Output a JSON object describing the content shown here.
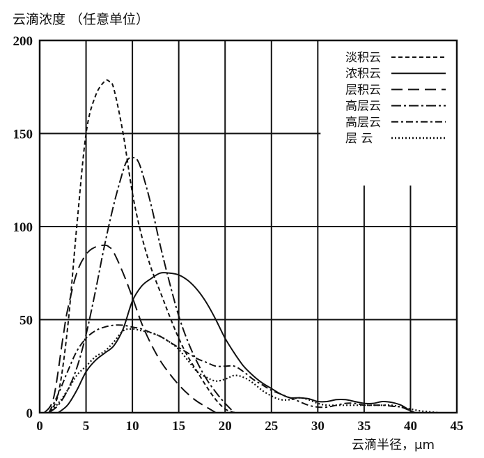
{
  "chart_data": {
    "type": "line",
    "title": "云滴浓度  （任意单位）",
    "xlabel": "云滴半径，μm",
    "ylabel": "",
    "xlim": [
      0,
      45
    ],
    "ylim": [
      0,
      200
    ],
    "xticks": [
      "0",
      "5",
      "10",
      "15",
      "20",
      "25",
      "30",
      "35",
      "40",
      "45"
    ],
    "yticks": [
      "0",
      "50",
      "100",
      "150",
      "200"
    ],
    "grid": true,
    "legend_position": "top-right",
    "series": [
      {
        "name": "淡积云",
        "style": "short-dash",
        "points": [
          [
            1,
            0
          ],
          [
            2,
            10
          ],
          [
            3,
            45
          ],
          [
            4,
            100
          ],
          [
            5,
            150
          ],
          [
            6,
            170
          ],
          [
            7,
            178
          ],
          [
            7.5,
            178
          ],
          [
            8,
            174
          ],
          [
            9,
            150
          ],
          [
            10,
            118
          ],
          [
            11,
            95
          ],
          [
            12,
            78
          ],
          [
            13,
            65
          ],
          [
            14,
            52
          ],
          [
            15,
            40
          ],
          [
            16,
            30
          ],
          [
            17,
            22
          ],
          [
            18,
            14
          ],
          [
            19,
            7
          ],
          [
            20,
            2
          ],
          [
            21,
            0
          ]
        ]
      },
      {
        "name": "浓积云",
        "style": "solid",
        "points": [
          [
            2,
            0
          ],
          [
            3,
            4
          ],
          [
            4,
            12
          ],
          [
            5,
            22
          ],
          [
            6,
            28
          ],
          [
            7,
            32
          ],
          [
            8,
            36
          ],
          [
            9,
            45
          ],
          [
            10,
            60
          ],
          [
            11,
            68
          ],
          [
            12,
            72
          ],
          [
            13,
            75
          ],
          [
            14,
            75
          ],
          [
            15,
            74
          ],
          [
            16,
            71
          ],
          [
            17,
            66
          ],
          [
            18,
            59
          ],
          [
            19,
            50
          ],
          [
            20,
            40
          ],
          [
            21,
            32
          ],
          [
            22,
            25
          ],
          [
            23,
            20
          ],
          [
            24,
            16
          ],
          [
            25,
            13
          ],
          [
            26,
            10
          ],
          [
            27,
            8
          ],
          [
            28,
            8
          ],
          [
            29,
            7.5
          ],
          [
            30,
            6
          ],
          [
            31,
            6
          ],
          [
            32,
            7
          ],
          [
            33,
            7
          ],
          [
            34,
            6
          ],
          [
            35,
            5
          ],
          [
            36,
            5
          ],
          [
            37,
            6
          ],
          [
            38,
            5.5
          ],
          [
            39,
            4
          ],
          [
            40,
            1
          ],
          [
            40.5,
            0
          ]
        ]
      },
      {
        "name": "层积云",
        "style": "long-dash",
        "points": [
          [
            0.5,
            0
          ],
          [
            1.5,
            8
          ],
          [
            2.5,
            40
          ],
          [
            3,
            55
          ],
          [
            4,
            75
          ],
          [
            5,
            85
          ],
          [
            6,
            89
          ],
          [
            7,
            90
          ],
          [
            7.5,
            89
          ],
          [
            8,
            86
          ],
          [
            9,
            75
          ],
          [
            10,
            62
          ],
          [
            11,
            48
          ],
          [
            12,
            37
          ],
          [
            13,
            28
          ],
          [
            14,
            21
          ],
          [
            15,
            15
          ],
          [
            16,
            10
          ],
          [
            17,
            6
          ],
          [
            18,
            3
          ],
          [
            19,
            0
          ]
        ]
      },
      {
        "name": "高层云",
        "style": "dash-dot",
        "points": [
          [
            1,
            0
          ],
          [
            2,
            4
          ],
          [
            3,
            12
          ],
          [
            4,
            24
          ],
          [
            5,
            42
          ],
          [
            6,
            65
          ],
          [
            7,
            90
          ],
          [
            8,
            112
          ],
          [
            9,
            130
          ],
          [
            9.5,
            136
          ],
          [
            10,
            137
          ],
          [
            10.5,
            136
          ],
          [
            11,
            130
          ],
          [
            12,
            112
          ],
          [
            13,
            90
          ],
          [
            14,
            70
          ],
          [
            15,
            52
          ],
          [
            16,
            38
          ],
          [
            17,
            27
          ],
          [
            18,
            18
          ],
          [
            19,
            11
          ],
          [
            20,
            5
          ],
          [
            21,
            0
          ]
        ]
      },
      {
        "name": "高层云",
        "style": "dash-dot-long",
        "points": [
          [
            1,
            0
          ],
          [
            2,
            10
          ],
          [
            3,
            22
          ],
          [
            4,
            33
          ],
          [
            5,
            40
          ],
          [
            6,
            44
          ],
          [
            7,
            46
          ],
          [
            8,
            47
          ],
          [
            9,
            47
          ],
          [
            10,
            46
          ],
          [
            11,
            45
          ],
          [
            12,
            43
          ],
          [
            13,
            41
          ],
          [
            14,
            38
          ],
          [
            15,
            35
          ],
          [
            16,
            32
          ],
          [
            17,
            29
          ],
          [
            18,
            27
          ],
          [
            19,
            25
          ],
          [
            20,
            25
          ],
          [
            21,
            25
          ],
          [
            22,
            22
          ],
          [
            23,
            18
          ],
          [
            24,
            15
          ],
          [
            25,
            12
          ],
          [
            26,
            10
          ],
          [
            27,
            8
          ],
          [
            28,
            6
          ],
          [
            29,
            4
          ],
          [
            30,
            3
          ],
          [
            31,
            3
          ],
          [
            32,
            4
          ],
          [
            33,
            5
          ],
          [
            34,
            5
          ],
          [
            35,
            4
          ],
          [
            36,
            4
          ],
          [
            37,
            4
          ],
          [
            38,
            3.5
          ],
          [
            39,
            3
          ],
          [
            40,
            1
          ],
          [
            40.5,
            0
          ]
        ]
      },
      {
        "name": "层  云",
        "style": "dotted",
        "points": [
          [
            1,
            0
          ],
          [
            2,
            5
          ],
          [
            3,
            12
          ],
          [
            4,
            20
          ],
          [
            5,
            25
          ],
          [
            6,
            30
          ],
          [
            7,
            33
          ],
          [
            8,
            38
          ],
          [
            9,
            44
          ],
          [
            10,
            45
          ],
          [
            11,
            44
          ],
          [
            12,
            43
          ],
          [
            13,
            41
          ],
          [
            14,
            38
          ],
          [
            15,
            34
          ],
          [
            16,
            28
          ],
          [
            17,
            22
          ],
          [
            18,
            19
          ],
          [
            19,
            17
          ],
          [
            20,
            18
          ],
          [
            21,
            20
          ],
          [
            22,
            19
          ],
          [
            23,
            16
          ],
          [
            24,
            12
          ],
          [
            25,
            9
          ],
          [
            26,
            7
          ],
          [
            27,
            7
          ],
          [
            28,
            8
          ],
          [
            29,
            7
          ],
          [
            30,
            5
          ],
          [
            31,
            4
          ],
          [
            32,
            4
          ],
          [
            33,
            4
          ],
          [
            34,
            4
          ],
          [
            35,
            4
          ],
          [
            36,
            4
          ],
          [
            37,
            4
          ],
          [
            38,
            4
          ],
          [
            39,
            3
          ],
          [
            40,
            2
          ],
          [
            41,
            1
          ],
          [
            42,
            0.5
          ],
          [
            43,
            0
          ]
        ]
      }
    ]
  }
}
